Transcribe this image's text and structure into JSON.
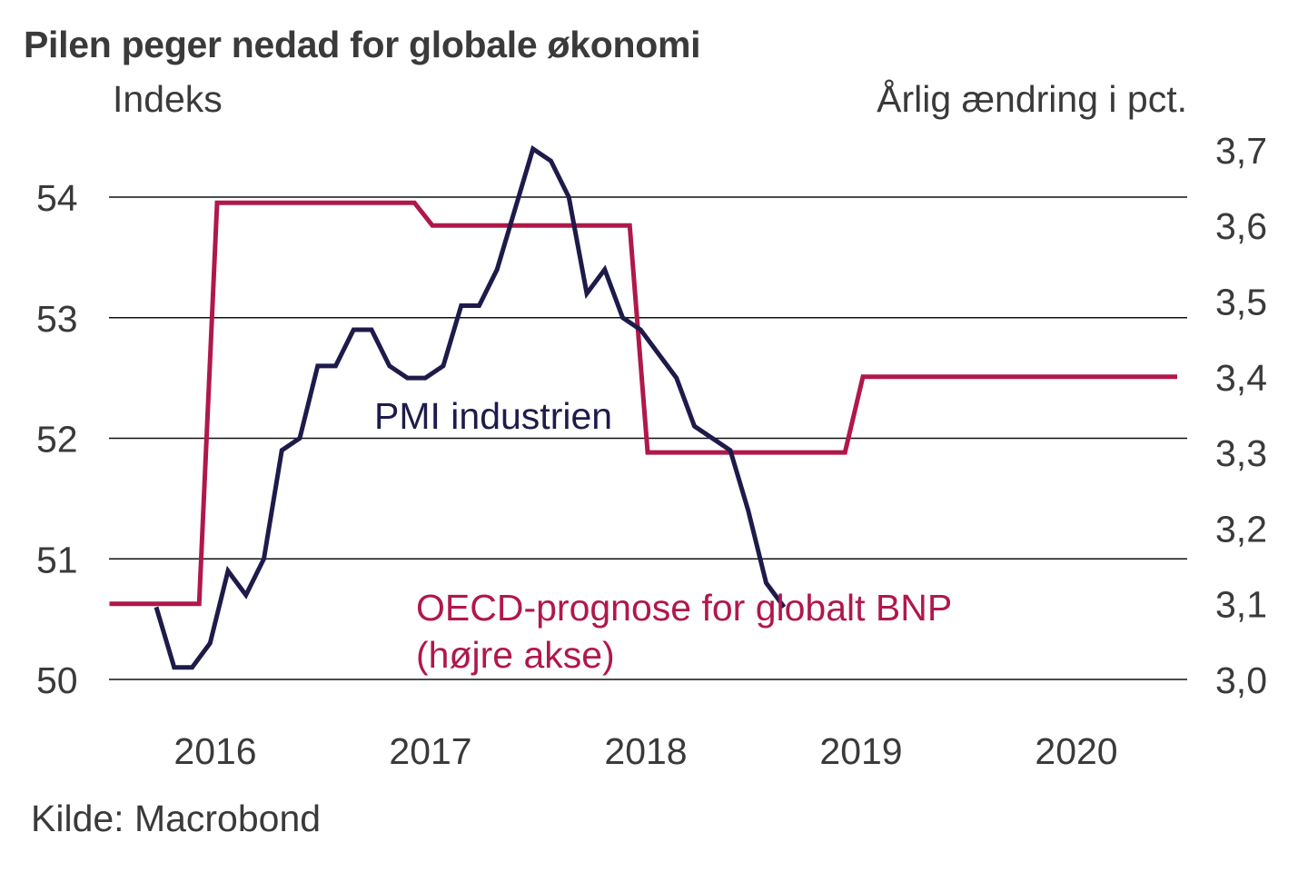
{
  "chart_data": {
    "type": "line",
    "title": "Pilen peger nedad for globale økonomi",
    "left_axis": {
      "label": "Indeks",
      "ylim": [
        50,
        54.4
      ],
      "ticks": [
        50,
        51,
        52,
        53,
        54
      ],
      "tick_labels": [
        "50",
        "51",
        "52",
        "53",
        "54"
      ],
      "grid": true
    },
    "right_axis": {
      "label": "Årlig ændring i pct.",
      "ylim": [
        3.0,
        3.7
      ],
      "ticks": [
        3.0,
        3.1,
        3.2,
        3.3,
        3.4,
        3.5,
        3.6,
        3.7
      ],
      "tick_labels": [
        "3,0",
        "3,1",
        "3,2",
        "3,3",
        "3,4",
        "3,5",
        "3,6",
        "3,7"
      ]
    },
    "x_axis": {
      "range_years": [
        2016,
        2021
      ],
      "tick_labels": [
        "2016",
        "2017",
        "2018",
        "2019",
        "2020"
      ]
    },
    "series": [
      {
        "name": "PMI industrien",
        "axis": "left",
        "color": "#1e1b4b",
        "start": "2016-03",
        "frequency": "monthly",
        "values": [
          50.6,
          50.1,
          50.1,
          50.3,
          50.9,
          50.7,
          51.0,
          51.9,
          52.0,
          52.6,
          52.6,
          52.9,
          52.9,
          52.6,
          52.5,
          52.5,
          52.6,
          53.1,
          53.1,
          53.4,
          53.9,
          54.4,
          54.3,
          54.0,
          53.2,
          53.4,
          53.0,
          52.9,
          52.7,
          52.5,
          52.1,
          52.0,
          51.9,
          51.4,
          50.8,
          50.6
        ]
      },
      {
        "name": "OECD-prognose for globalt BNP (højre akse)",
        "axis": "right",
        "color": "#b0184a",
        "points": [
          {
            "date": "2016-01",
            "value": 3.1
          },
          {
            "date": "2016-06",
            "value": 3.1
          },
          {
            "date": "2016-07",
            "value": 3.63
          },
          {
            "date": "2017-06",
            "value": 3.63
          },
          {
            "date": "2017-07",
            "value": 3.6
          },
          {
            "date": "2018-06",
            "value": 3.6
          },
          {
            "date": "2018-07",
            "value": 3.3
          },
          {
            "date": "2019-06",
            "value": 3.3
          },
          {
            "date": "2019-07",
            "value": 3.4
          },
          {
            "date": "2020-12",
            "value": 3.4
          }
        ]
      }
    ],
    "annotations": [
      {
        "text": "PMI industrien",
        "series": "PMI industrien"
      },
      {
        "text": "OECD-prognose for globalt BNP",
        "series": "OECD-prognose for globalt BNP (højre akse)"
      },
      {
        "text": "(højre akse)",
        "series": "OECD-prognose for globalt BNP (højre akse)"
      }
    ],
    "source": "Kilde: Macrobond"
  }
}
